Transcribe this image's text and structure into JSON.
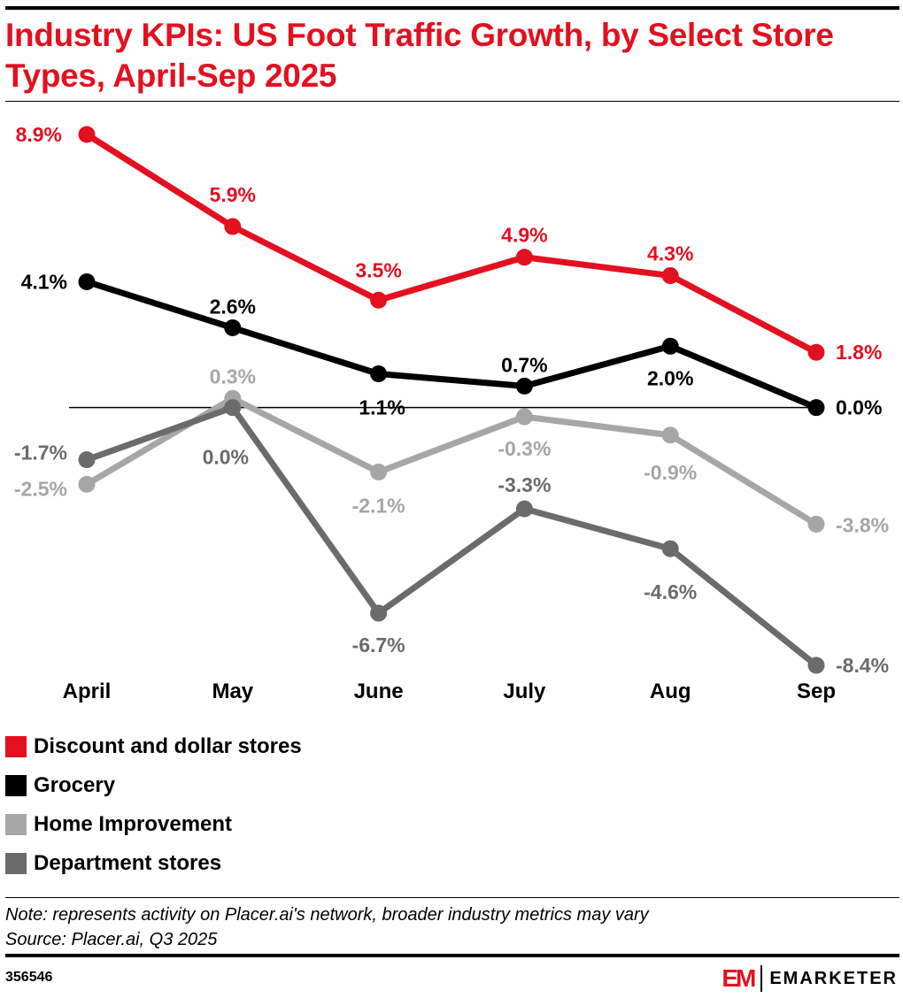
{
  "title": "Industry KPIs: US Foot Traffic Growth, by Select Store Types, April-Sep 2025",
  "note": "Note: represents activity on Placer.ai's network, broader industry metrics may vary",
  "source": "Source: Placer.ai, Q3 2025",
  "chart_id": "356546",
  "brand": {
    "mark": "EM",
    "name": "EMARKETER"
  },
  "colors": {
    "accent": "#e3101f",
    "discount": "#e3101f",
    "grocery": "#000000",
    "home": "#a6a6a6",
    "department": "#6b6b6b"
  },
  "chart_data": {
    "type": "line",
    "title": "Industry KPIs: US Foot Traffic Growth, by Select Store Types, April-Sep 2025",
    "categories": [
      "April",
      "May",
      "June",
      "July",
      "Aug",
      "Sep"
    ],
    "unit": "%",
    "ylim": [
      -8.4,
      8.9
    ],
    "grid": false,
    "legend_position": "bottom-left",
    "series": [
      {
        "name": "Discount and dollar stores",
        "color": "#e3101f",
        "values": [
          8.9,
          5.9,
          3.5,
          4.9,
          4.3,
          1.8
        ],
        "labels": [
          "8.9%",
          "5.9%",
          "3.5%",
          "4.9%",
          "4.3%",
          "1.8%"
        ]
      },
      {
        "name": "Grocery",
        "color": "#000000",
        "values": [
          4.1,
          2.6,
          1.1,
          0.7,
          2.0,
          0.0
        ],
        "labels": [
          "4.1%",
          "2.6%",
          "1.1%",
          "0.7%",
          "2.0%",
          "0.0%"
        ]
      },
      {
        "name": "Home Improvement",
        "color": "#a6a6a6",
        "values": [
          -2.5,
          0.3,
          -2.1,
          -0.3,
          -0.9,
          -3.8
        ],
        "labels": [
          "-2.5%",
          "0.3%",
          "-2.1%",
          "-0.3%",
          "-0.9%",
          "-3.8%"
        ]
      },
      {
        "name": "Department stores",
        "color": "#6b6b6b",
        "values": [
          -1.7,
          0.0,
          -6.7,
          -3.3,
          -4.6,
          -8.4
        ],
        "labels": [
          "-1.7%",
          "0.0%",
          "-6.7%",
          "-3.3%",
          "-4.6%",
          "-8.4%"
        ]
      }
    ]
  }
}
